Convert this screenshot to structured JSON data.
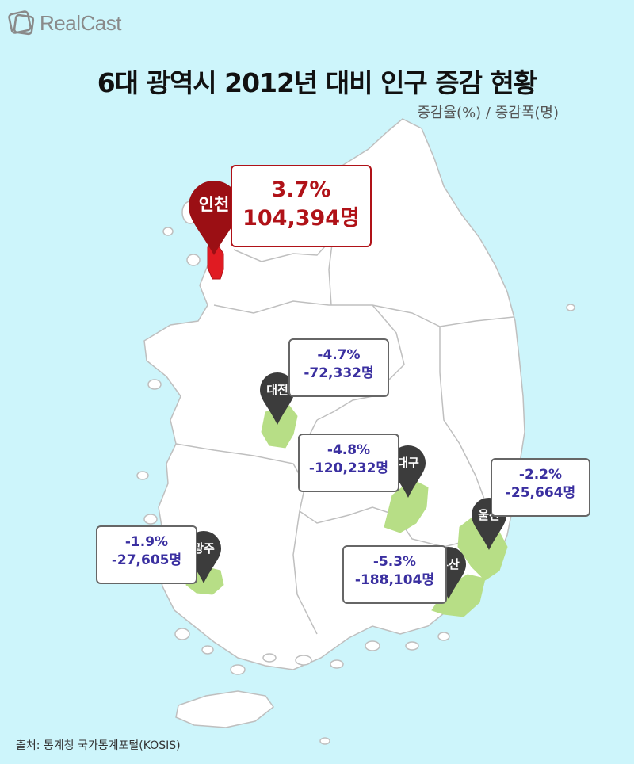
{
  "brand": "RealCast",
  "title": "6대 광역시 2012년 대비 인구 증감 현황",
  "subtitle": "증감율(%) / 증감폭(명)",
  "source": "출처:  통계청 국가통계포털(KOSIS)",
  "colors": {
    "highlight": "#b01218",
    "decrease_text": "#3a2fa0",
    "region_fill": "#b7de86",
    "pin": "#3c3c3c",
    "background": "#cdf5fb"
  },
  "cities": [
    {
      "name": "인천",
      "rate": "3.7%",
      "change": "104,394명"
    },
    {
      "name": "대전",
      "rate": "-4.7%",
      "change": "-72,332명"
    },
    {
      "name": "대구",
      "rate": "-4.8%",
      "change": "-120,232명"
    },
    {
      "name": "울산",
      "rate": "-2.2%",
      "change": "-25,664명"
    },
    {
      "name": "광주",
      "rate": "-1.9%",
      "change": "-27,605명"
    },
    {
      "name": "부산",
      "rate": "-5.3%",
      "change": "-188,104명"
    }
  ]
}
